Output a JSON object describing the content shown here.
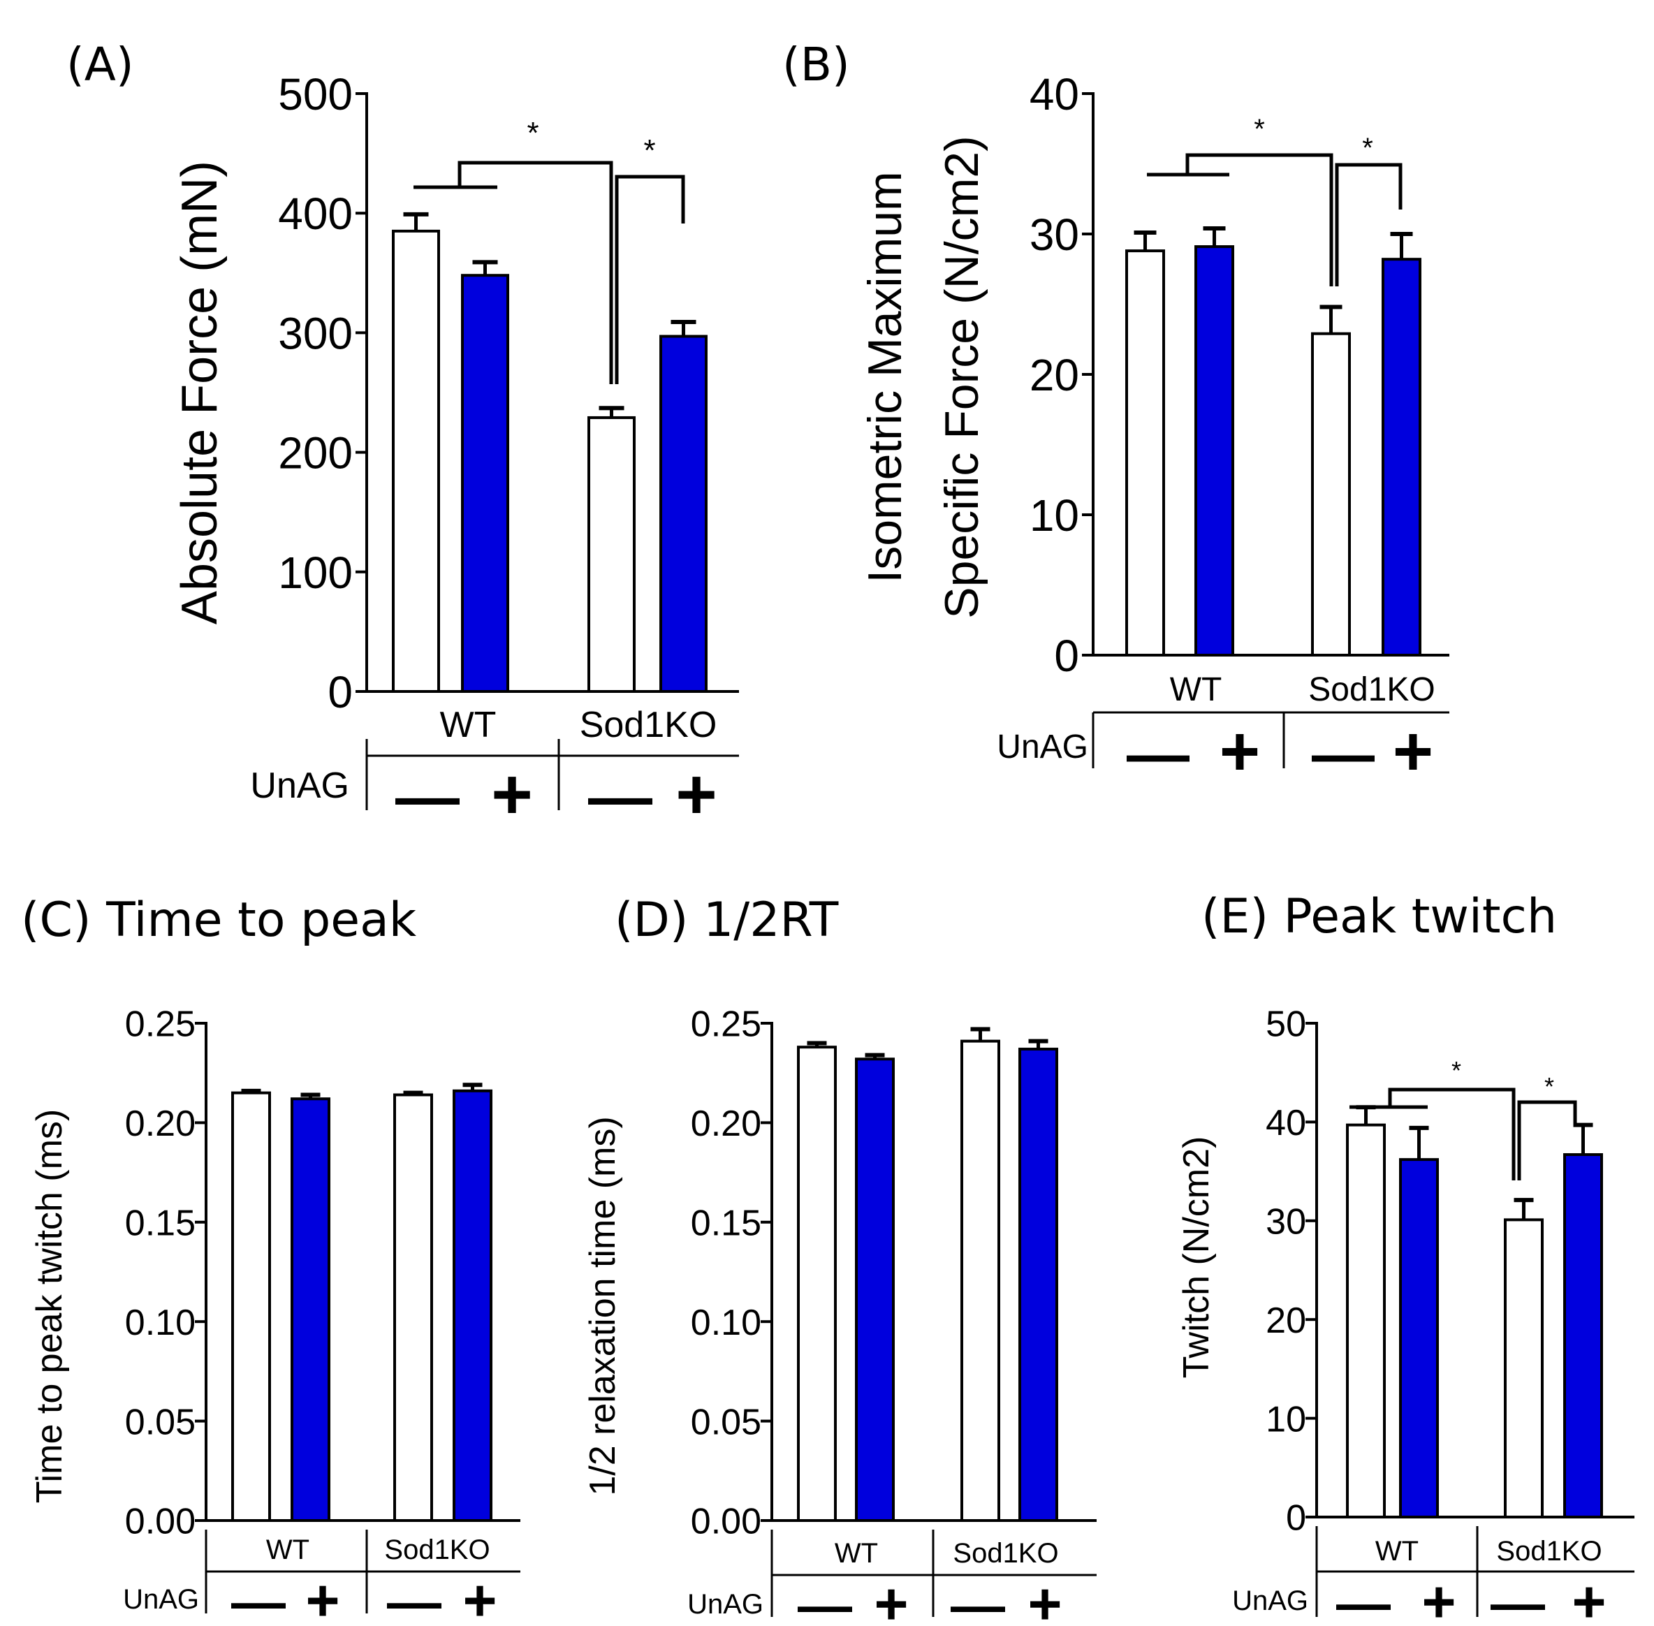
{
  "colors": {
    "treated_bar": "#0000dd",
    "control_bar": "#ffffff",
    "stroke": "#000000"
  },
  "chart_data": [
    {
      "id": "A",
      "panel_label": "(A)",
      "title": "",
      "type": "bar",
      "ylabel": "Absolute Force (mN)",
      "ylim": [
        0,
        500
      ],
      "yticks": [
        "0",
        "100",
        "200",
        "300",
        "400",
        "500"
      ],
      "groups": [
        "WT",
        "Sod1KO"
      ],
      "treatment_label": "UnAG",
      "treatment_symbols": [
        "—",
        "+",
        "—",
        "+"
      ],
      "series": [
        {
          "name": "UnAG −",
          "color": "#ffffff",
          "values": [
            385,
            229
          ],
          "errors": [
            14,
            8
          ]
        },
        {
          "name": "UnAG +",
          "color": "#0000dd",
          "values": [
            348,
            297
          ],
          "errors": [
            11,
            12
          ]
        }
      ],
      "annotations": [
        "*",
        "*"
      ]
    },
    {
      "id": "B",
      "panel_label": "(B)",
      "title": "",
      "type": "bar",
      "ylabel_lines": [
        "Isometric Maximum",
        "Specific Force (N/cm2)"
      ],
      "ylim": [
        0,
        40
      ],
      "yticks": [
        "0",
        "10",
        "20",
        "30",
        "40"
      ],
      "groups": [
        "WT",
        "Sod1KO"
      ],
      "treatment_label": "UnAG",
      "treatment_symbols": [
        "—",
        "+",
        "—",
        "+"
      ],
      "series": [
        {
          "name": "UnAG −",
          "color": "#ffffff",
          "values": [
            28.8,
            22.9
          ],
          "errors": [
            1.3,
            1.9
          ]
        },
        {
          "name": "UnAG +",
          "color": "#0000dd",
          "values": [
            29.1,
            28.2
          ],
          "errors": [
            1.3,
            1.8
          ]
        }
      ],
      "annotations": [
        "*",
        "*"
      ]
    },
    {
      "id": "C",
      "panel_label": "(C) Time to peak",
      "type": "bar",
      "ylabel": "Time to peak twitch (ms)",
      "ylim": [
        0,
        0.25
      ],
      "yticks": [
        "0.00",
        "0.05",
        "0.10",
        "0.15",
        "0.20",
        "0.25"
      ],
      "groups": [
        "WT",
        "Sod1KO"
      ],
      "treatment_label": "UnAG",
      "treatment_symbols": [
        "—",
        "+",
        "—",
        "+"
      ],
      "series": [
        {
          "name": "UnAG −",
          "color": "#ffffff",
          "values": [
            0.215,
            0.214
          ],
          "errors": [
            0.001,
            0.001
          ]
        },
        {
          "name": "UnAG +",
          "color": "#0000dd",
          "values": [
            0.212,
            0.216
          ],
          "errors": [
            0.002,
            0.003
          ]
        }
      ],
      "annotations": []
    },
    {
      "id": "D",
      "panel_label": "(D) 1/2RT",
      "type": "bar",
      "ylabel": "1/2 relaxation time (ms)",
      "ylim": [
        0,
        0.25
      ],
      "yticks": [
        "0.00",
        "0.05",
        "0.10",
        "0.15",
        "0.20",
        "0.25"
      ],
      "groups": [
        "WT",
        "Sod1KO"
      ],
      "treatment_label": "UnAG",
      "treatment_symbols": [
        "—",
        "+",
        "—",
        "+"
      ],
      "series": [
        {
          "name": "UnAG −",
          "color": "#ffffff",
          "values": [
            0.238,
            0.241
          ],
          "errors": [
            0.002,
            0.006
          ]
        },
        {
          "name": "UnAG +",
          "color": "#0000dd",
          "values": [
            0.232,
            0.237
          ],
          "errors": [
            0.002,
            0.004
          ]
        }
      ],
      "annotations": []
    },
    {
      "id": "E",
      "panel_label": "(E) Peak twitch",
      "type": "bar",
      "ylabel": "Twitch (N/cm2)",
      "ylim": [
        0,
        50
      ],
      "yticks": [
        "0",
        "10",
        "20",
        "30",
        "40",
        "50"
      ],
      "groups": [
        "WT",
        "Sod1KO"
      ],
      "treatment_label": "UnAG",
      "treatment_symbols": [
        "—",
        "+",
        "—",
        "+"
      ],
      "series": [
        {
          "name": "UnAG −",
          "color": "#ffffff",
          "values": [
            39.7,
            30.1
          ],
          "errors": [
            1.8,
            2.0
          ]
        },
        {
          "name": "UnAG +",
          "color": "#0000dd",
          "values": [
            36.2,
            36.7
          ],
          "errors": [
            3.2,
            3.0
          ]
        }
      ],
      "annotations": [
        "*",
        "*"
      ]
    }
  ]
}
